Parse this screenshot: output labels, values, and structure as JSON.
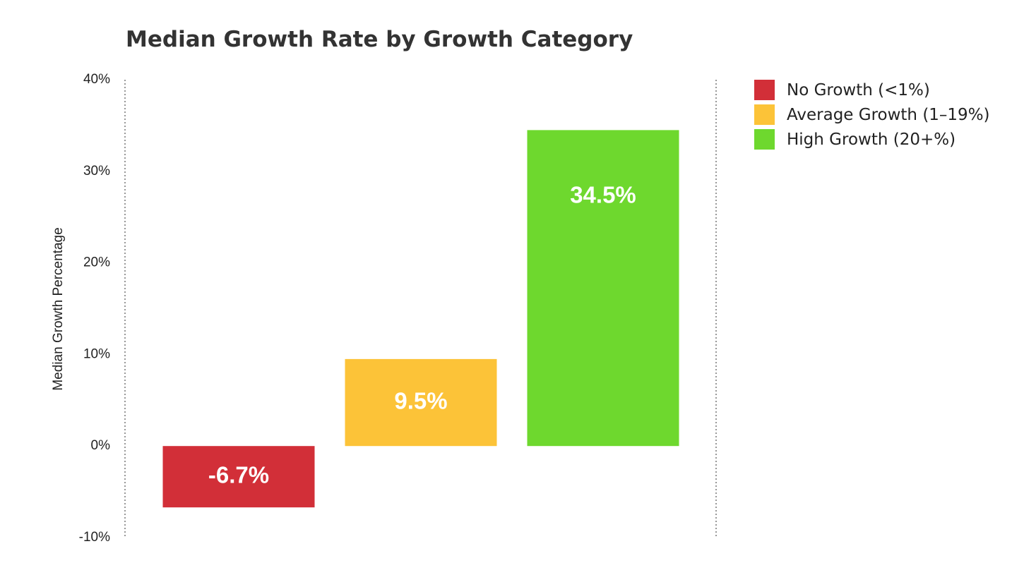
{
  "chart_data": {
    "type": "bar",
    "title": "Median Growth Rate by Growth Category",
    "xlabel": "",
    "ylabel": "Median Growth Percentage",
    "categories": [
      "No Growth (<1%)",
      "Average Growth (1–19%)",
      "High Growth (20+%)"
    ],
    "values": [
      -6.7,
      9.5,
      34.5
    ],
    "data_labels": [
      "-6.7%",
      "9.5%",
      "34.5%"
    ],
    "colors": [
      "#d22f38",
      "#fcc338",
      "#6ed82e"
    ],
    "ylim": [
      -10,
      40
    ],
    "yticks": [
      40,
      30,
      20,
      10,
      0,
      -10
    ],
    "ytick_labels": [
      "40%",
      "30%",
      "20%",
      "10%",
      "0%",
      "-10%"
    ],
    "grid": false,
    "legend": "right"
  }
}
